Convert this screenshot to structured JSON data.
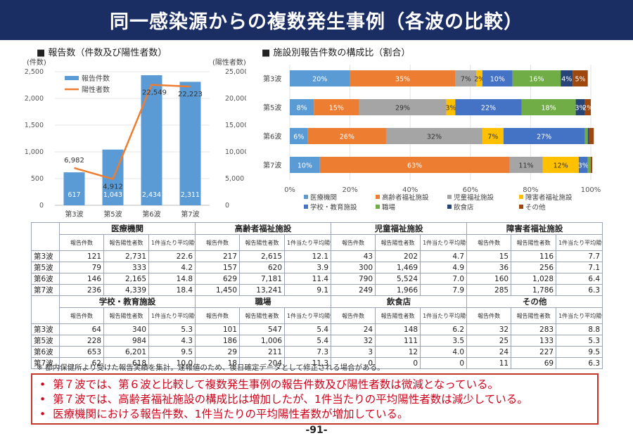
{
  "title": "同一感染源からの複数発生事例（各波の比較）",
  "left_chart": {
    "heading": "■ 報告数（件数及び陽性者数）",
    "y_left_label": "(件数)",
    "y_right_label": "(陽性者数)",
    "y_left_ticks": [
      "2,500",
      "2,000",
      "1,500",
      "1,000",
      "500",
      "0"
    ],
    "y_right_ticks": [
      "25,000",
      "20,000",
      "15,000",
      "10,000",
      "5,000",
      "0"
    ],
    "legend_bar": "報告件数",
    "legend_line": "陽性者数",
    "bar_color": "#5b9bd5",
    "line_color": "#ed7d31"
  },
  "right_chart": {
    "heading": "■ 施設別報告件数の構成比（割合）",
    "x_ticks": [
      "0%",
      "20%",
      "40%",
      "60%",
      "80%",
      "100%"
    ]
  },
  "chart_data": [
    {
      "type": "bar",
      "title": "報告数（件数及び陽性者数）",
      "categories": [
        "第3波",
        "第5波",
        "第6波",
        "第7波"
      ],
      "series": [
        {
          "name": "報告件数",
          "type": "bar",
          "axis": "left",
          "values": [
            617,
            1043,
            2434,
            2311
          ],
          "labels": [
            "617",
            "1,043",
            "2,434",
            "2,311"
          ]
        },
        {
          "name": "陽性者数",
          "type": "line",
          "axis": "right",
          "values": [
            6982,
            4912,
            22549,
            22223
          ],
          "labels": [
            "6,982",
            "4,912",
            "22,549",
            "22,223"
          ]
        }
      ],
      "ylim_left": [
        0,
        2500
      ],
      "ylim_right": [
        0,
        25000
      ],
      "ylabel_left": "(件数)",
      "ylabel_right": "(陽性者数)"
    },
    {
      "type": "bar",
      "orientation": "horizontal-stacked-100",
      "title": "施設別報告件数の構成比（割合）",
      "categories": [
        "第3波",
        "第5波",
        "第6波",
        "第7波"
      ],
      "series": [
        {
          "name": "医療機関",
          "color": "#5b9bd5",
          "values": [
            20,
            8,
            6,
            10
          ],
          "labels": [
            "20%",
            "8%",
            "6%",
            "10%"
          ]
        },
        {
          "name": "高齢者福祉施設",
          "color": "#ed7d31",
          "values": [
            35,
            15,
            26,
            63
          ],
          "labels": [
            "35%",
            "15%",
            "26%",
            "63%"
          ]
        },
        {
          "name": "児童福祉施設",
          "color": "#a5a5a5",
          "values": [
            7,
            29,
            32,
            11
          ],
          "labels": [
            "7%",
            "29%",
            "32%",
            "11%"
          ]
        },
        {
          "name": "障害者福祉施設",
          "color": "#ffc000",
          "values": [
            2,
            3,
            7,
            12
          ],
          "labels": [
            "2%",
            "3%",
            "7%",
            "12%"
          ]
        },
        {
          "name": "学校・教育施設",
          "color": "#4472c4",
          "values": [
            10,
            22,
            27,
            3
          ],
          "labels": [
            "10%",
            "22%",
            "27%",
            "3%"
          ]
        },
        {
          "name": "職場",
          "color": "#70ad47",
          "values": [
            16,
            18,
            1,
            1
          ],
          "labels": [
            "16%",
            "18%",
            "",
            ""
          ]
        },
        {
          "name": "飲食店",
          "color": "#264478",
          "values": [
            4,
            3,
            0.5,
            0
          ],
          "labels": [
            "4%",
            "3%",
            "",
            ""
          ]
        },
        {
          "name": "その他",
          "color": "#9e480e",
          "values": [
            5,
            2,
            1.5,
            0.5
          ],
          "labels": [
            "5%",
            "2%",
            "",
            ""
          ]
        }
      ],
      "xlim": [
        0,
        100
      ],
      "x_unit": "%"
    }
  ],
  "table": {
    "sub_headers": [
      "報告件数",
      "報告陽性者数",
      "1件当たり平均陽性者数"
    ],
    "blocks": [
      {
        "groups": [
          "医療機関",
          "高齢者福祉施設",
          "児童福祉施設",
          "障害者福祉施設"
        ],
        "rows": [
          {
            "wave": "第3波",
            "cells": [
              "121",
              "2,731",
              "22.6",
              "217",
              "2,615",
              "12.1",
              "43",
              "202",
              "4.7",
              "15",
              "116",
              "7.7"
            ]
          },
          {
            "wave": "第5波",
            "cells": [
              "79",
              "333",
              "4.2",
              "157",
              "620",
              "3.9",
              "300",
              "1,469",
              "4.9",
              "36",
              "256",
              "7.1"
            ]
          },
          {
            "wave": "第6波",
            "cells": [
              "146",
              "2,165",
              "14.8",
              "629",
              "7,181",
              "11.4",
              "790",
              "5,524",
              "7.0",
              "160",
              "1,028",
              "6.4"
            ]
          },
          {
            "wave": "第7波",
            "cells": [
              "236",
              "4,339",
              "18.4",
              "1,450",
              "13,241",
              "9.1",
              "249",
              "1,966",
              "7.9",
              "285",
              "1,786",
              "6.3"
            ]
          }
        ]
      },
      {
        "groups": [
          "学校・教育施設",
          "職場",
          "飲食店",
          "その他"
        ],
        "rows": [
          {
            "wave": "第3波",
            "cells": [
              "64",
              "340",
              "5.3",
              "101",
              "547",
              "5.4",
              "24",
              "148",
              "6.2",
              "32",
              "283",
              "8.8"
            ]
          },
          {
            "wave": "第5波",
            "cells": [
              "228",
              "984",
              "4.3",
              "186",
              "1,006",
              "5.4",
              "32",
              "111",
              "3.5",
              "25",
              "133",
              "5.3"
            ]
          },
          {
            "wave": "第6波",
            "cells": [
              "653",
              "6,201",
              "9.5",
              "29",
              "211",
              "7.3",
              "3",
              "12",
              "4.0",
              "24",
              "227",
              "9.5"
            ]
          },
          {
            "wave": "第7波",
            "cells": [
              "62",
              "618",
              "10.0",
              "18",
              "204",
              "11.3",
              "0",
              "0",
              "0",
              "11",
              "69",
              "6.3"
            ]
          }
        ]
      }
    ]
  },
  "footnote": "※ 都内保健所より受けた報告実績を集計。速報値のため、後日確定データとして修正される場合がある。",
  "summary": [
    "第７波では、第６波と比較して複数発生事例の報告件数及び陽性者数は微減となっている。",
    "第７波では、高齢者福祉施設の構成比は増加したが、1件当たりの平均陽性者数は減少している。",
    "医療機関における報告件数、1件当たりの平均陽性者数が増加している。"
  ],
  "page_number": "-91-"
}
